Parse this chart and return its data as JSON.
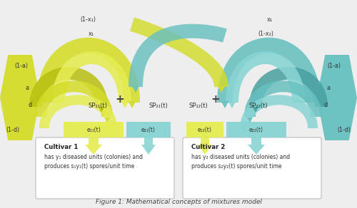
{
  "title": "Figure 1: Mathematical concepts of mixtures model",
  "bg_color": "#eeeeee",
  "yellow": "#d4dc28",
  "yellow_light": "#e4ec50",
  "yellow_dark": "#b8c010",
  "cyan": "#68c0c0",
  "cyan_light": "#88d4d4",
  "cyan_dark": "#48a0a0",
  "white": "#ffffff",
  "text_color": "#333333",
  "text1_line1": "Cultivar 1",
  "text1_line2": "has y₁ diseased units (colonies) and",
  "text1_line3": "produces s₁y₁(t) spores/unit time",
  "text2_line1": "Cultivar 2",
  "text2_line2": "has y₂ diseased units (colonies) and",
  "text2_line3": "produces s₂y₂(t) spores/unit time",
  "lbl_1mx1": "(1-x₁)",
  "lbl_x1_left": "x₁",
  "lbl_x1_right": "x₁",
  "lbl_1mx2": "(1-x₂)",
  "lbl_1ma_L": "(1-a)",
  "lbl_a_L": "a",
  "lbl_d_L": "d",
  "lbl_1md_L": "(1-d)",
  "lbl_1ma_R": "(1-a)",
  "lbl_a_R": "a",
  "lbl_d_R": "d",
  "lbl_1md_R": "(1-d)",
  "sp11": "SP₁₁(t)",
  "sp21": "SP₂₁(t)",
  "sp12": "SP₁₂(t)",
  "sp22": "SP₂₂(t)",
  "e11": "e₁₁(t)",
  "e21": "e₂₁(t)",
  "e12": "e₁₂(t)",
  "e22": "e₂₂(t)"
}
